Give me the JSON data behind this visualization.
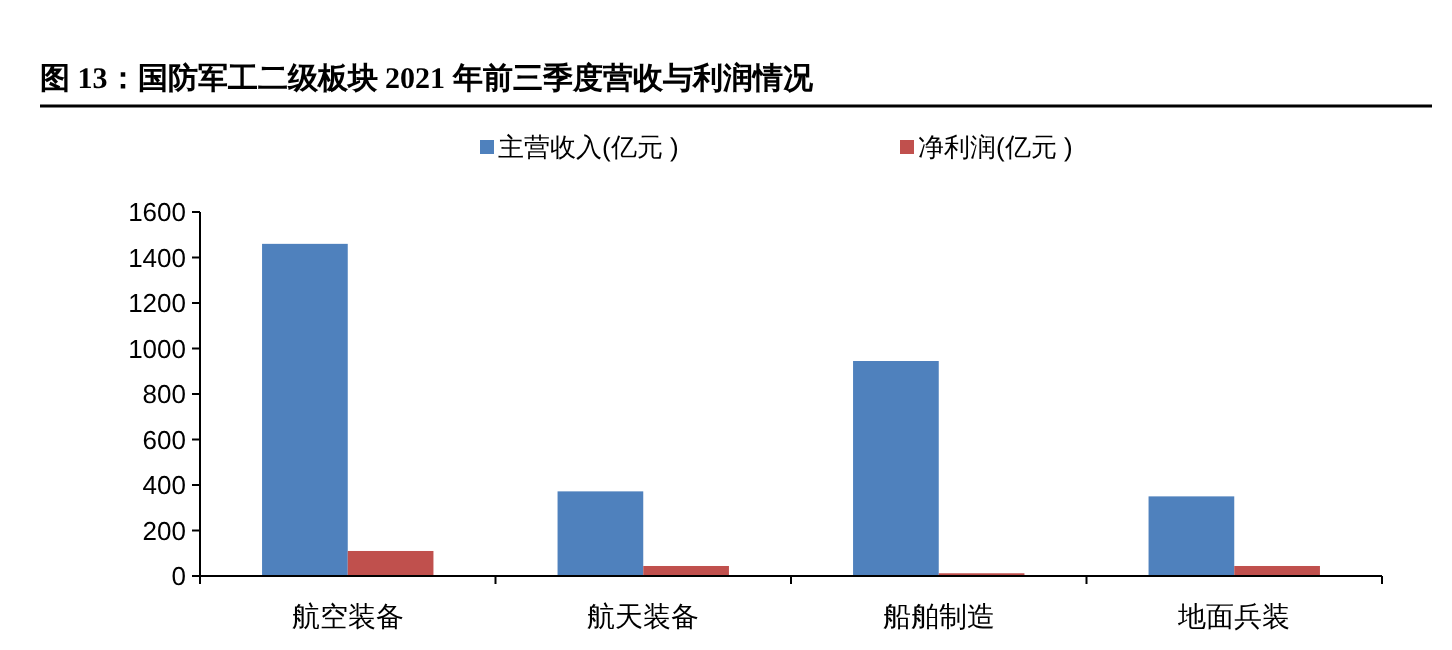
{
  "chart_data": {
    "type": "bar",
    "title": "图 13：国防军工二级板块 2021 年前三季度营收与利润情况",
    "categories": [
      "航空装备",
      "航天装备",
      "船舶制造",
      "地面兵装"
    ],
    "series": [
      {
        "name": "主营收入(亿元 )",
        "color": "#4f81bd",
        "values": [
          1460,
          372,
          945,
          350
        ]
      },
      {
        "name": "净利润(亿元 )",
        "color": "#c0504d",
        "values": [
          110,
          44,
          12,
          44
        ]
      }
    ],
    "ylim": [
      0,
      1600
    ],
    "yticks": [
      0,
      200,
      400,
      600,
      800,
      1000,
      1200,
      1400,
      1600
    ],
    "legend": "top",
    "grid": false
  }
}
